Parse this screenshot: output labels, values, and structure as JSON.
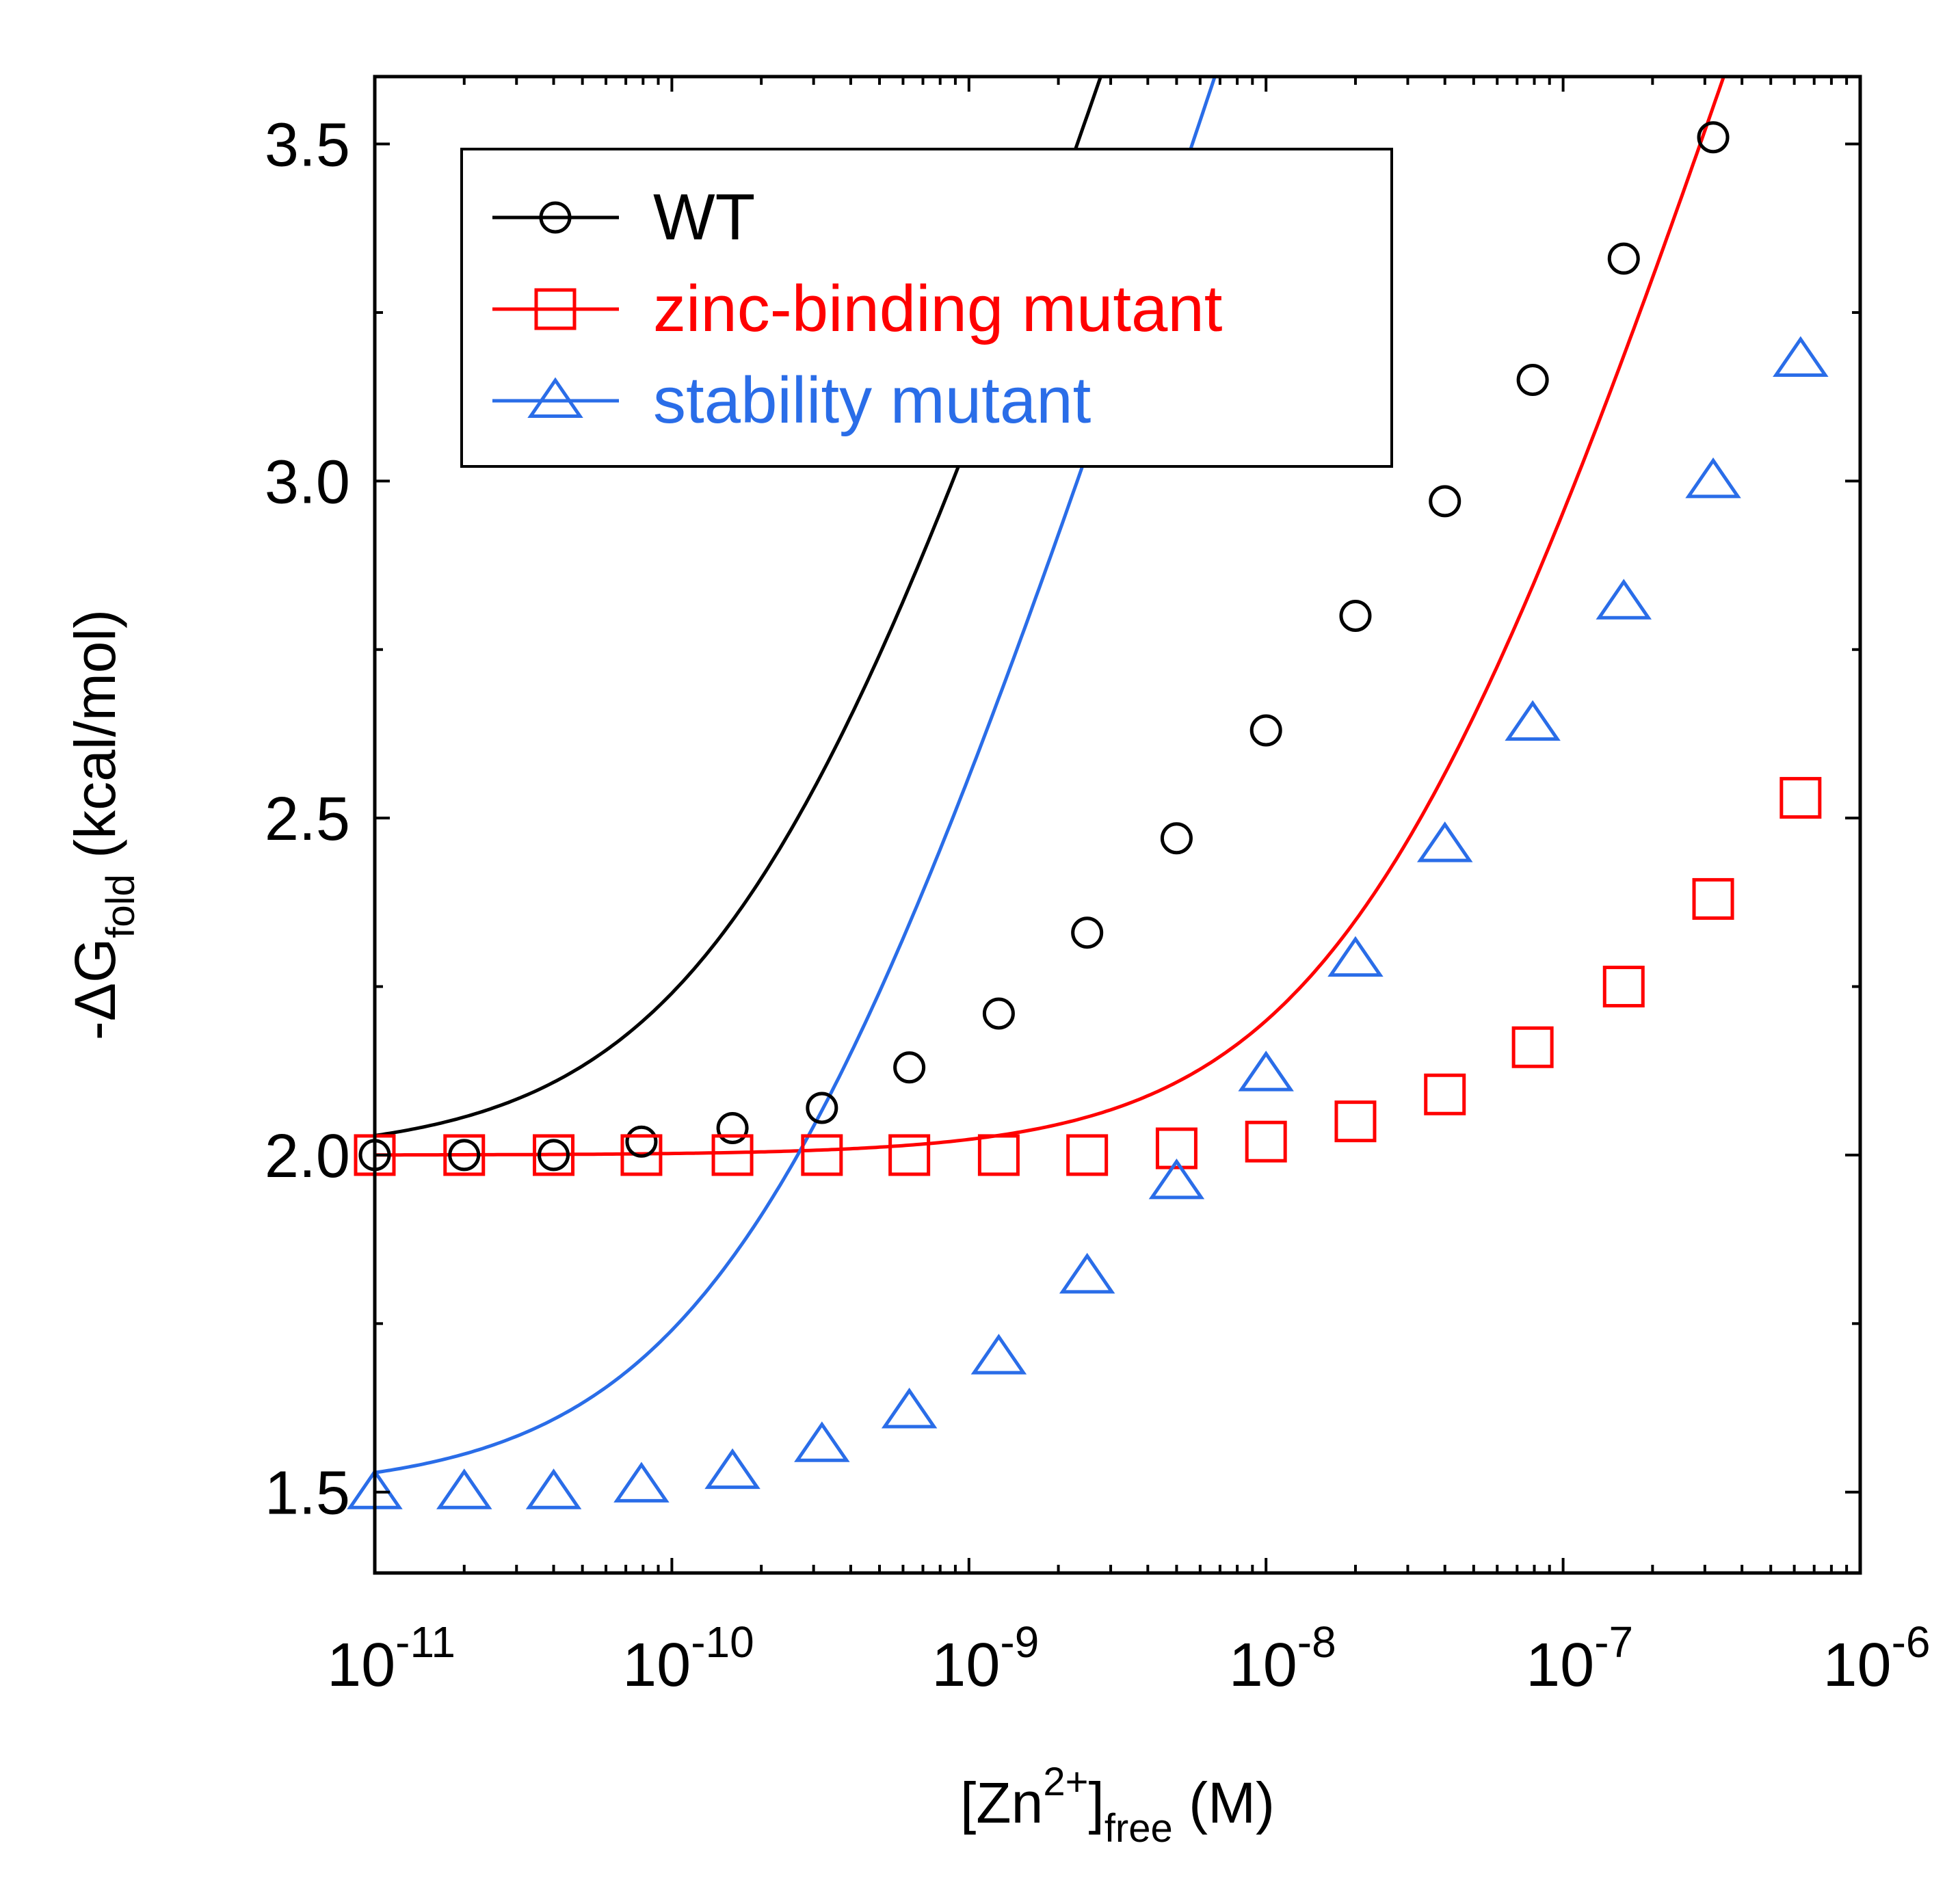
{
  "chart_data": {
    "type": "line",
    "xlabel": {
      "prefix": "[Zn",
      "sup": "2+",
      "mid": "]",
      "sub": "free",
      "suffix": " (M)"
    },
    "ylabel": {
      "prefix": "-ΔG",
      "sub": "fold",
      "suffix": " (kcal/mol)"
    },
    "x_scale": "log",
    "xlim": [
      1e-11,
      1e-06
    ],
    "ylim": [
      1.38,
      3.6
    ],
    "x_ticks": [
      {
        "base": "10",
        "exp": "-11",
        "value": 1e-11
      },
      {
        "base": "10",
        "exp": "-10",
        "value": 1e-10
      },
      {
        "base": "10",
        "exp": "-9",
        "value": 1e-09
      },
      {
        "base": "10",
        "exp": "-8",
        "value": 1e-08
      },
      {
        "base": "10",
        "exp": "-7",
        "value": 1e-07
      },
      {
        "base": "10",
        "exp": "-6",
        "value": 1e-06
      }
    ],
    "y_ticks": [
      {
        "label": "1.5",
        "value": 1.5
      },
      {
        "label": "2.0",
        "value": 2.0
      },
      {
        "label": "2.5",
        "value": 2.5
      },
      {
        "label": "3.0",
        "value": 3.0
      },
      {
        "label": "3.5",
        "value": 3.5
      }
    ],
    "grid": false,
    "legend": {
      "placement": "top-left",
      "framed": true
    },
    "series": [
      {
        "name": "WT",
        "color": "#000000",
        "marker": "circle",
        "curve": {
          "base": 2.0,
          "kd": 2e-10
        },
        "points": [
          [
            1e-11,
            2.0
          ],
          [
            2e-11,
            2.0
          ],
          [
            4e-11,
            2.0
          ],
          [
            7.9e-11,
            2.02
          ],
          [
            1.6e-10,
            2.04
          ],
          [
            3.2e-10,
            2.07
          ],
          [
            6.3e-10,
            2.13
          ],
          [
            1.26e-09,
            2.21
          ],
          [
            2.5e-09,
            2.33
          ],
          [
            5e-09,
            2.47
          ],
          [
            1e-08,
            2.63
          ],
          [
            2e-08,
            2.8
          ],
          [
            4e-08,
            2.97
          ],
          [
            7.9e-08,
            3.15
          ],
          [
            1.6e-07,
            3.33
          ],
          [
            3.2e-07,
            3.51
          ]
        ]
      },
      {
        "name": "zinc-binding mutant",
        "color": "#ff0000",
        "marker": "square",
        "curve": {
          "base": 2.0,
          "kd": 2.5e-08
        },
        "points": [
          [
            1e-11,
            2.0
          ],
          [
            2e-11,
            2.0
          ],
          [
            4e-11,
            2.0
          ],
          [
            7.9e-11,
            2.0
          ],
          [
            1.6e-10,
            2.0
          ],
          [
            3.2e-10,
            2.0
          ],
          [
            6.3e-10,
            2.0
          ],
          [
            1.26e-09,
            2.0
          ],
          [
            2.5e-09,
            2.0
          ],
          [
            5e-09,
            2.01
          ],
          [
            1e-08,
            2.02
          ],
          [
            2e-08,
            2.05
          ],
          [
            4e-08,
            2.09
          ],
          [
            7.9e-08,
            2.16
          ],
          [
            1.6e-07,
            2.25
          ],
          [
            3.2e-07,
            2.38
          ],
          [
            6.3e-07,
            2.53
          ]
        ]
      },
      {
        "name": "stability mutant",
        "color": "#2a6de8",
        "marker": "triangle",
        "curve": {
          "base": 1.5,
          "kd": 2e-10
        },
        "points": [
          [
            1e-11,
            1.5
          ],
          [
            2e-11,
            1.5
          ],
          [
            4e-11,
            1.5
          ],
          [
            7.9e-11,
            1.51
          ],
          [
            1.6e-10,
            1.53
          ],
          [
            3.2e-10,
            1.57
          ],
          [
            6.3e-10,
            1.62
          ],
          [
            1.26e-09,
            1.7
          ],
          [
            2.5e-09,
            1.82
          ],
          [
            5e-09,
            1.96
          ],
          [
            1e-08,
            2.12
          ],
          [
            2e-08,
            2.29
          ],
          [
            4e-08,
            2.46
          ],
          [
            7.9e-08,
            2.64
          ],
          [
            1.6e-07,
            2.82
          ],
          [
            3.2e-07,
            3.0
          ],
          [
            6.3e-07,
            3.18
          ]
        ]
      }
    ]
  }
}
